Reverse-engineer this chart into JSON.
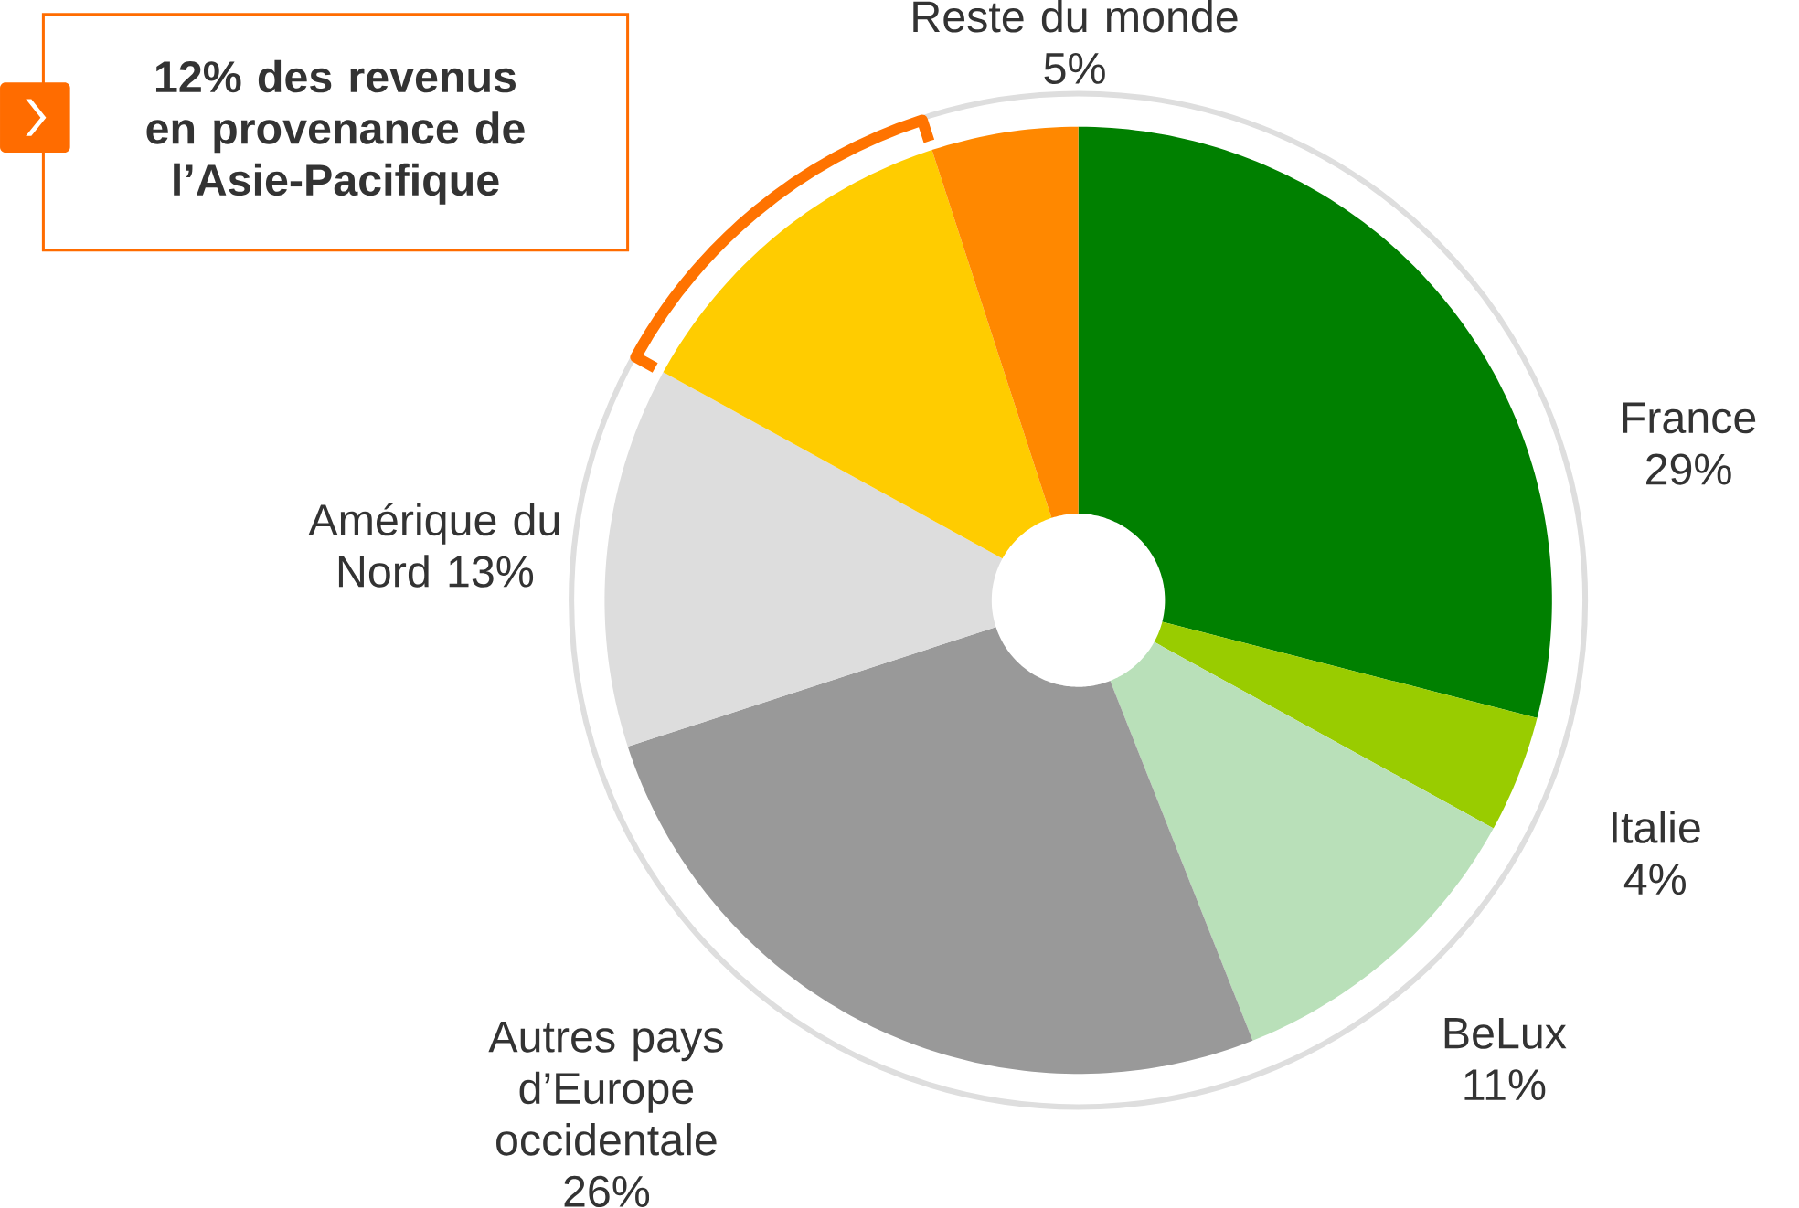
{
  "chart_data": {
    "type": "donut",
    "categories": [
      "France",
      "Italie",
      "BeLux",
      "Autres pays d’Europe occidentale",
      "Amérique du Nord",
      null,
      "Reste du monde"
    ],
    "values": [
      29,
      4,
      11,
      26,
      13,
      12,
      5
    ],
    "value_labels": [
      "29%",
      "4%",
      "11%",
      "26%",
      "13%",
      null,
      "5%"
    ],
    "colors": [
      "#008000",
      "#99cc00",
      "#b9e0b9",
      "#999999",
      "#dddddd",
      "#ffcc00",
      "#ff8800"
    ],
    "annotations": [
      "12% des revenus en provenance de l’Asie-Pacifique"
    ]
  }
}
